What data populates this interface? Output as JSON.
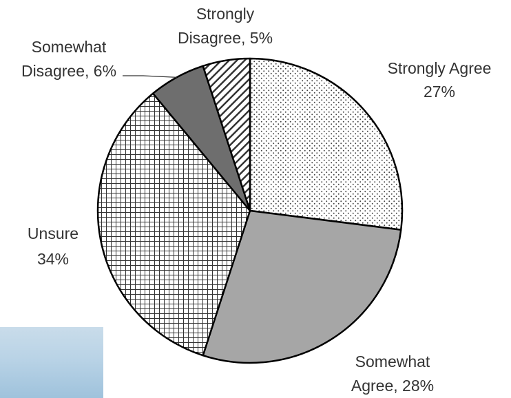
{
  "chart_data": {
    "type": "pie",
    "title": "",
    "slices": [
      {
        "name": "Strongly Agree",
        "value": 27,
        "line1": "Strongly Agree",
        "line2": "27%",
        "color": "#ffffff",
        "pattern": "dots"
      },
      {
        "name": "Somewhat Agree",
        "value": 28,
        "line1": "Somewhat",
        "line2": "Agree, 28%",
        "color": "#a6a6a6",
        "pattern": "solid"
      },
      {
        "name": "Unsure",
        "value": 34,
        "line1": "Unsure",
        "line2": "34%",
        "color": "#ffffff",
        "pattern": "grid"
      },
      {
        "name": "Somewhat Disagree",
        "value": 6,
        "line1": "Somewhat",
        "line2": "Disagree, 6%",
        "color": "#6e6e6e",
        "pattern": "solid"
      },
      {
        "name": "Strongly Disagree",
        "value": 5,
        "line1": "Strongly",
        "line2": "Disagree, 5%",
        "color": "#ffffff",
        "pattern": "diagonal-stripes"
      }
    ],
    "start_angle": "12 o'clock",
    "direction": "clockwise",
    "legend": "none"
  }
}
